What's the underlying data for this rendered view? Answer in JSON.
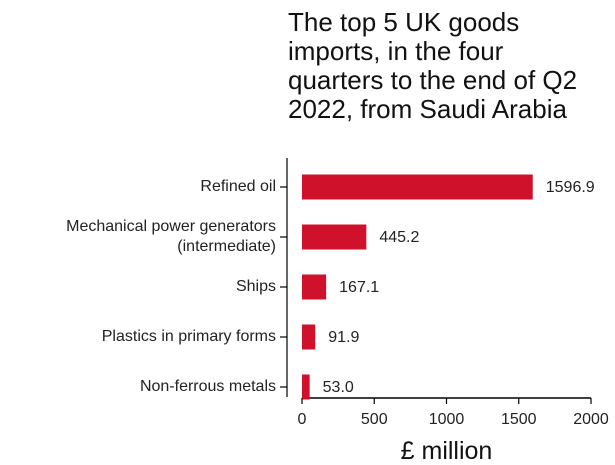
{
  "chart_data": {
    "type": "bar",
    "orientation": "horizontal",
    "title_lines": [
      "The top 5 UK goods",
      "imports, in the four",
      "quarters to the end of Q2",
      "2022, from Saudi Arabia"
    ],
    "categories": [
      [
        "Refined oil"
      ],
      [
        "Mechanical power generators",
        "(intermediate)"
      ],
      [
        "Ships"
      ],
      [
        "Plastics in primary forms"
      ],
      [
        "Non-ferrous metals"
      ]
    ],
    "values": [
      1596.9,
      445.2,
      167.1,
      91.9,
      53.0
    ],
    "value_labels": [
      "1596.9",
      "445.2",
      "167.1",
      "91.9",
      "53.0"
    ],
    "xlabel": "£ million",
    "xticks": [
      0,
      500,
      1000,
      1500,
      2000
    ],
    "xtick_labels": [
      "0",
      "500",
      "1000",
      "1500",
      "2000"
    ],
    "xlim": [
      0,
      2000
    ],
    "bar_color": "#d0112b",
    "grid": false,
    "legend": "none"
  }
}
